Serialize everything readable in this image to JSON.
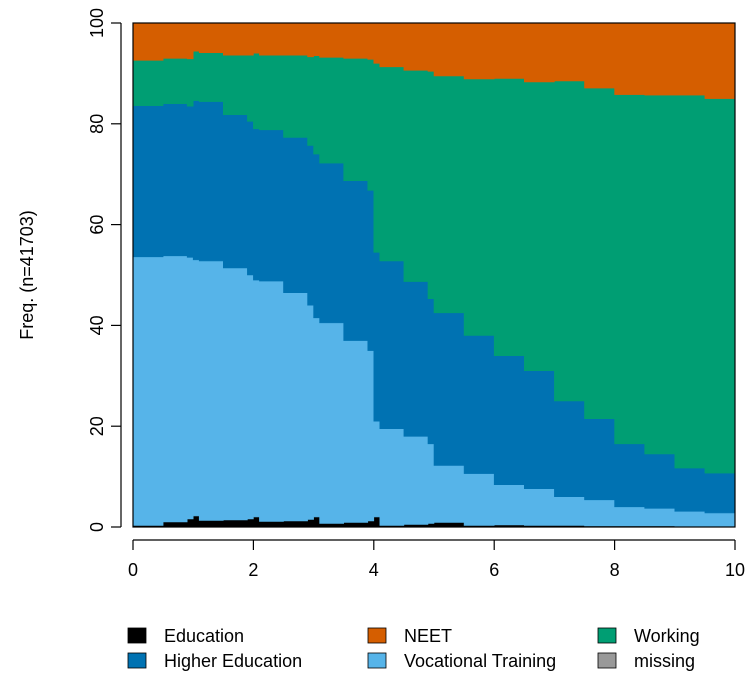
{
  "chart_data": {
    "type": "area",
    "stacked": true,
    "step": true,
    "ylabel": "Freq. (n=41703)",
    "xlabel": "",
    "xlim": [
      0,
      10
    ],
    "ylim": [
      0,
      100
    ],
    "xticks": [
      "0",
      "2",
      "4",
      "6",
      "8",
      "10"
    ],
    "yticks": [
      "0",
      "20",
      "40",
      "60",
      "80",
      "100"
    ],
    "legend_position": "bottom",
    "legend_order": [
      "Education",
      "Higher Education",
      "NEET",
      "Vocational Training",
      "Working",
      "missing"
    ],
    "x": [
      0,
      0.5,
      0.9,
      1.0,
      1.1,
      1.5,
      1.9,
      2.0,
      2.1,
      2.5,
      2.9,
      3.0,
      3.1,
      3.5,
      3.9,
      4.0,
      4.1,
      4.5,
      4.9,
      5.0,
      5.5,
      6.0,
      6.5,
      7.0,
      7.5,
      8.0,
      8.5,
      9.0,
      9.5,
      10.0
    ],
    "series": [
      {
        "name": "Education",
        "color": "#000000",
        "values": [
          0.3,
          1.0,
          1.6,
          2.2,
          1.3,
          1.4,
          1.6,
          2.0,
          1.1,
          1.2,
          1.5,
          2.0,
          0.7,
          0.9,
          1.2,
          2.0,
          0.3,
          0.5,
          0.7,
          0.9,
          0.3,
          0.4,
          0.3,
          0.3,
          0.2,
          0.2,
          0.2,
          0.1,
          0.1,
          0.1
        ]
      },
      {
        "name": "Vocational Training",
        "color": "#56B4E9",
        "values": [
          53.3,
          52.8,
          51.9,
          50.8,
          51.5,
          50.0,
          48.4,
          47.0,
          47.7,
          45.3,
          42.5,
          39.5,
          39.8,
          36.1,
          33.8,
          19.0,
          19.2,
          17.5,
          15.8,
          11.3,
          10.3,
          8.0,
          7.3,
          5.7,
          5.2,
          3.8,
          3.5,
          3.0,
          2.7,
          2.5
        ]
      },
      {
        "name": "Higher Education",
        "color": "#0072B2",
        "values": [
          30.0,
          30.2,
          30.0,
          31.6,
          31.6,
          30.4,
          30.5,
          30.0,
          30.0,
          30.8,
          31.7,
          32.5,
          31.7,
          31.7,
          31.8,
          33.5,
          33.3,
          30.7,
          28.8,
          30.3,
          27.4,
          25.6,
          23.4,
          19.0,
          16.1,
          12.5,
          10.8,
          8.6,
          7.9,
          7.9
        ]
      },
      {
        "name": "Working",
        "color": "#009E73",
        "values": [
          9.0,
          9.0,
          9.4,
          9.8,
          9.7,
          11.8,
          13.1,
          15.0,
          14.8,
          16.3,
          17.6,
          19.5,
          21.0,
          24.3,
          26.0,
          37.5,
          38.5,
          41.9,
          45.1,
          47.0,
          50.9,
          55.0,
          57.3,
          63.5,
          65.6,
          69.3,
          71.2,
          74.0,
          74.3,
          74.5
        ]
      },
      {
        "name": "NEET",
        "color": "#D55E00",
        "values": [
          7.4,
          7.0,
          7.1,
          5.6,
          5.9,
          6.4,
          6.4,
          6.0,
          6.4,
          6.4,
          6.7,
          6.5,
          6.8,
          7.0,
          7.2,
          8.0,
          8.7,
          9.4,
          9.6,
          10.5,
          11.1,
          11.0,
          11.7,
          11.5,
          12.9,
          14.2,
          14.3,
          14.3,
          15.0,
          15.0
        ]
      },
      {
        "name": "missing",
        "color": "#999999",
        "values": [
          0,
          0,
          0,
          0,
          0,
          0,
          0,
          0,
          0,
          0,
          0,
          0,
          0,
          0,
          0,
          0,
          0,
          0,
          0,
          0,
          0,
          0,
          0,
          0,
          0,
          0,
          0,
          0,
          0,
          0
        ]
      }
    ]
  }
}
